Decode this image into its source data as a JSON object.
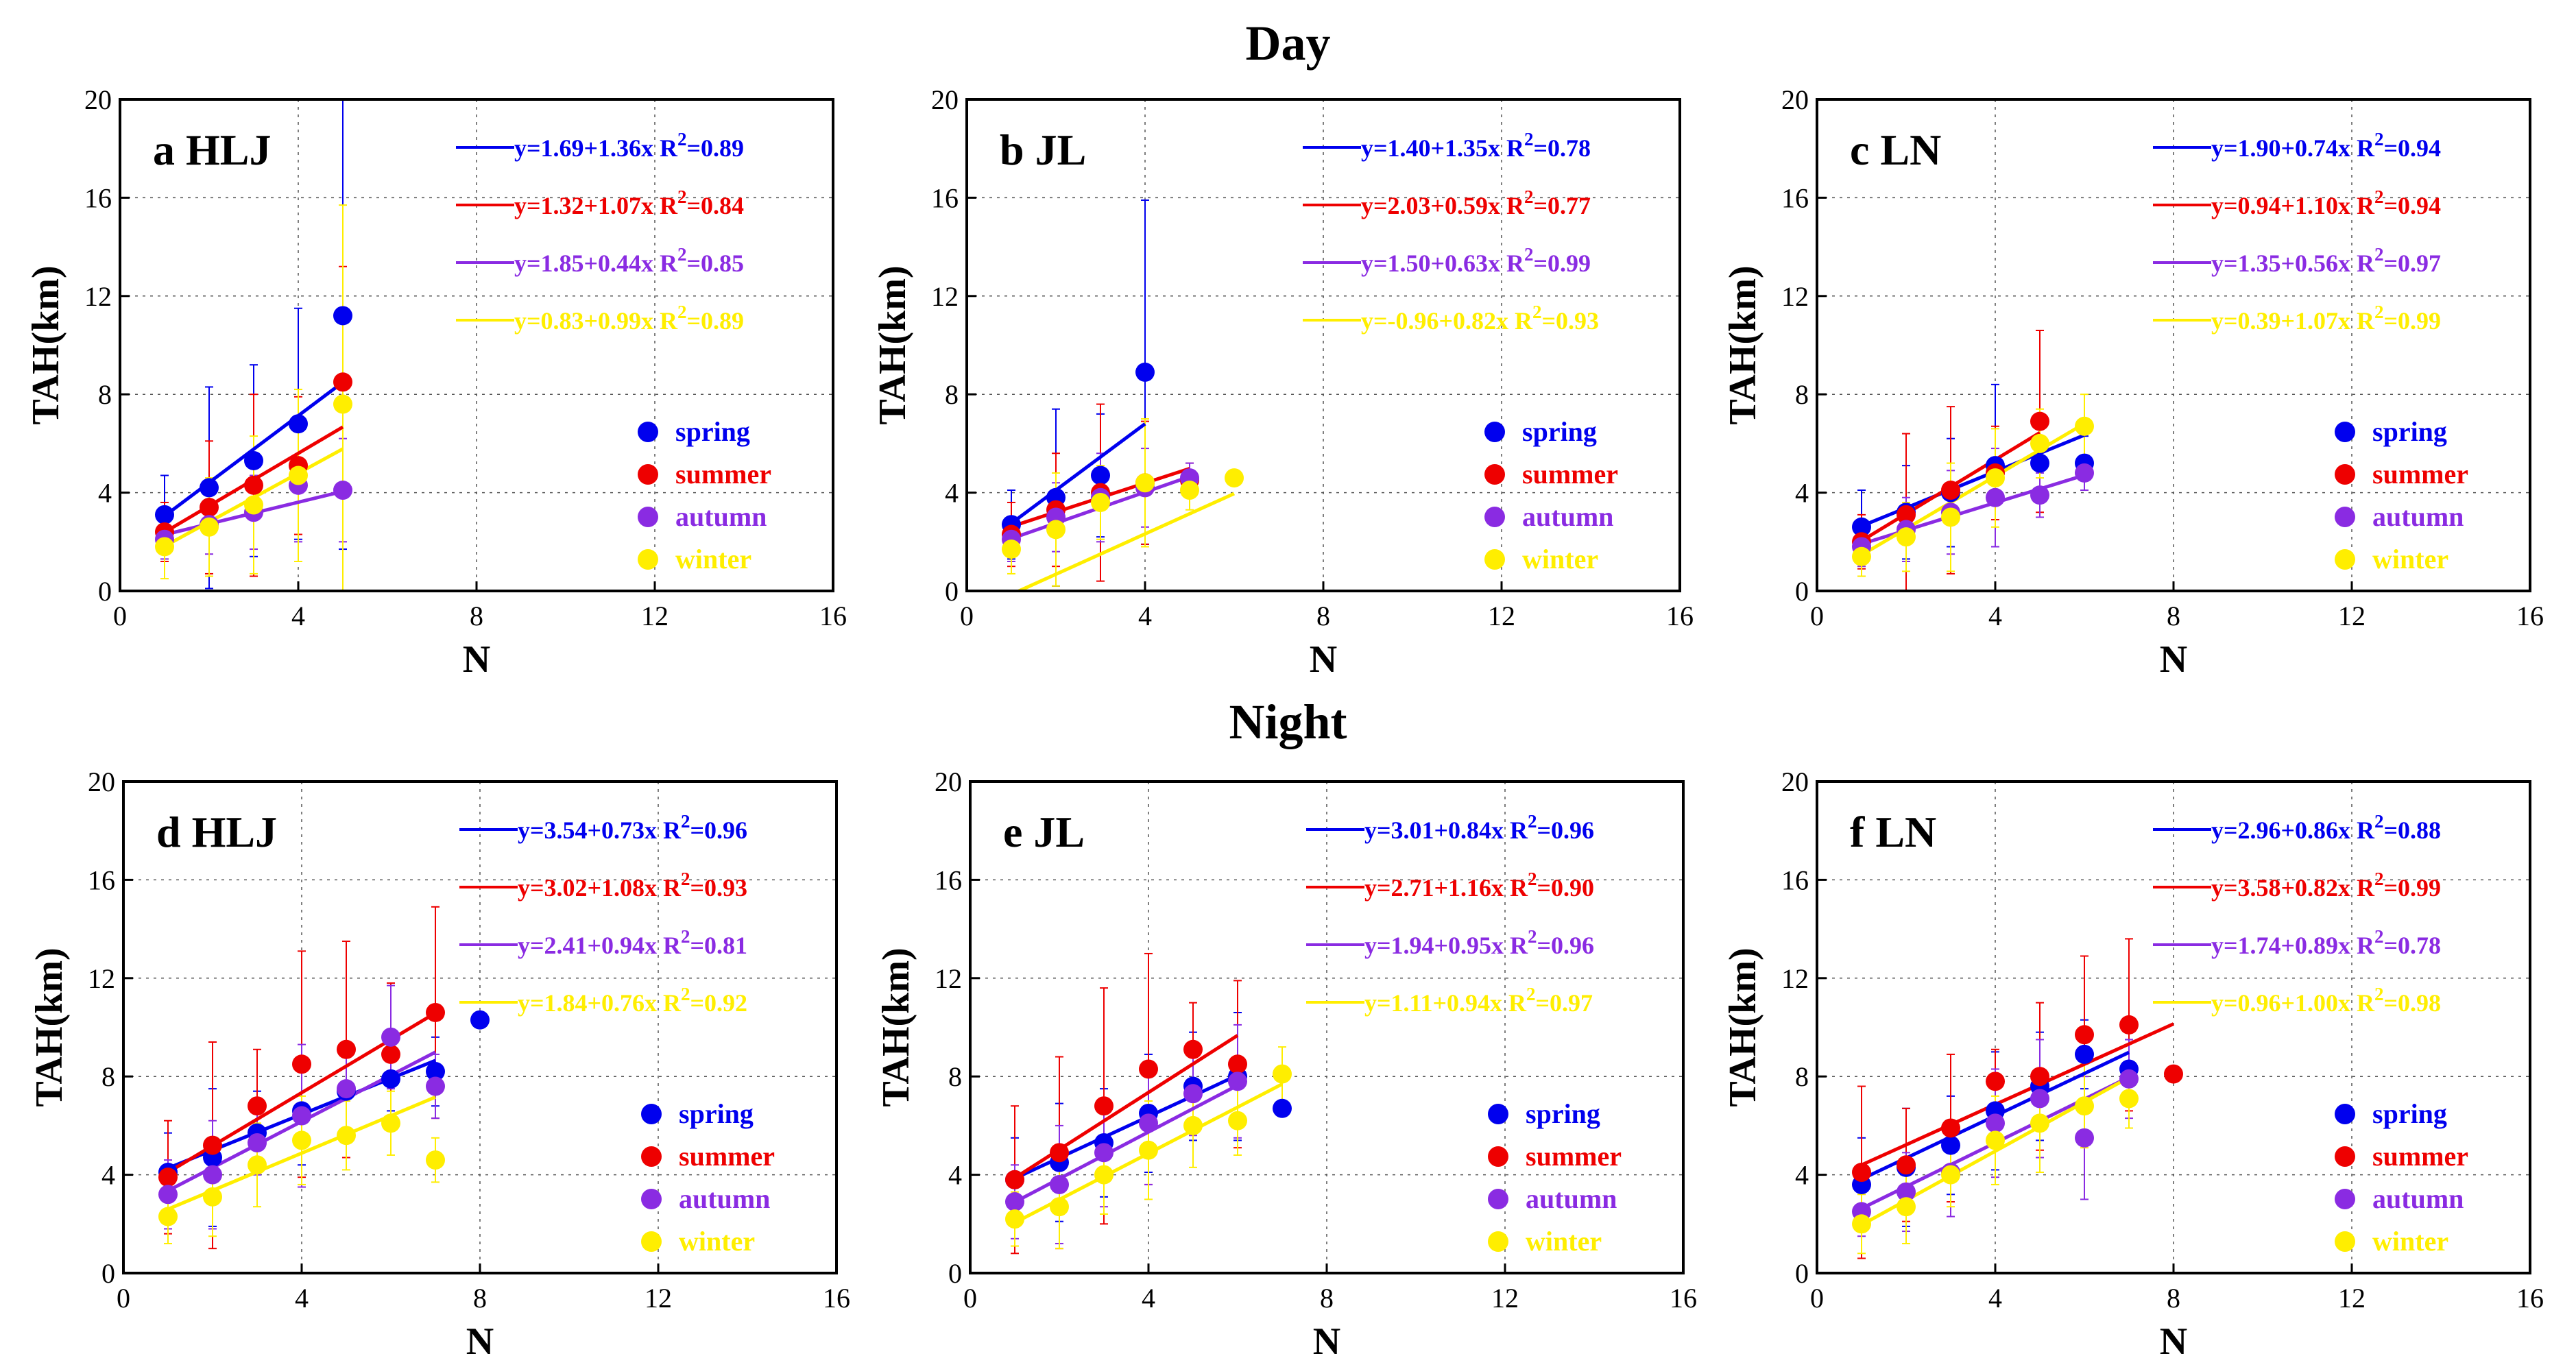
{
  "titles": {
    "day": "Day",
    "night": "Night"
  },
  "legend_names": [
    "spring",
    "summer",
    "autumn",
    "winter"
  ],
  "colors": {
    "spring": "#0000ee",
    "summer": "#ee0000",
    "autumn": "#8a2be2",
    "winter": "#ffee00"
  },
  "chart_data": [
    {
      "type": "scatter",
      "panel": "a HLJ",
      "group": "Day",
      "xlabel": "N",
      "ylabel": "TAH(km)",
      "xlim": [
        0,
        16
      ],
      "ylim": [
        0,
        20
      ],
      "xticks": [
        "0",
        "4",
        "8",
        "12",
        "16"
      ],
      "yticks": [
        "0",
        "4",
        "8",
        "12",
        "16",
        "20"
      ],
      "series": [
        {
          "name": "spring",
          "x": [
            1,
            2,
            3,
            4,
            5
          ],
          "y": [
            3.1,
            4.2,
            5.3,
            6.8,
            11.2
          ],
          "err": [
            1.6,
            4.1,
            3.9,
            4.7,
            9.5
          ],
          "fit": {
            "a": 1.69,
            "b": 1.36,
            "x0": 1,
            "x1": 5
          },
          "label": "y=1.69+1.36x",
          "r2": "=0.89"
        },
        {
          "name": "summer",
          "x": [
            1,
            2,
            3,
            4,
            5
          ],
          "y": [
            2.4,
            3.4,
            4.3,
            5.1,
            8.5
          ],
          "err": [
            1.2,
            2.7,
            3.7,
            2.8,
            4.7
          ],
          "fit": {
            "a": 1.32,
            "b": 1.07,
            "x0": 1,
            "x1": 5
          },
          "label": "y=1.32+1.07x",
          "r2": "=0.84"
        },
        {
          "name": "autumn",
          "x": [
            1,
            2,
            3,
            4,
            5
          ],
          "y": [
            2.1,
            2.7,
            3.2,
            4.3,
            4.1
          ],
          "err": [
            0.8,
            1.2,
            1.5,
            2.3,
            2.1
          ],
          "fit": {
            "a": 1.85,
            "b": 0.44,
            "x0": 1,
            "x1": 5
          },
          "label": "y=1.85+0.44x",
          "r2": "=0.85"
        },
        {
          "name": "winter",
          "x": [
            1,
            2,
            3,
            4,
            5
          ],
          "y": [
            1.8,
            2.6,
            3.5,
            4.7,
            7.6
          ],
          "err": [
            1.3,
            2.0,
            2.8,
            3.5,
            8.1
          ],
          "fit": {
            "a": 0.83,
            "b": 0.99,
            "x0": 1,
            "x1": 5
          },
          "label": "y=0.83+0.99x",
          "r2": "=0.89"
        }
      ]
    },
    {
      "type": "scatter",
      "panel": "b JL",
      "group": "Day",
      "xlabel": "N",
      "ylabel": "TAH(km)",
      "xlim": [
        0,
        16
      ],
      "ylim": [
        0,
        20
      ],
      "xticks": [
        "0",
        "4",
        "8",
        "12",
        "16"
      ],
      "yticks": [
        "0",
        "4",
        "8",
        "12",
        "16",
        "20"
      ],
      "series": [
        {
          "name": "spring",
          "x": [
            1,
            2,
            3,
            4
          ],
          "y": [
            2.7,
            3.8,
            4.7,
            8.9
          ],
          "err": [
            1.4,
            3.6,
            2.5,
            7.0
          ],
          "fit": {
            "a": 1.4,
            "b": 1.35,
            "x0": 1,
            "x1": 4
          },
          "label": "y=1.40+1.35x",
          "r2": "=0.78"
        },
        {
          "name": "summer",
          "x": [
            1,
            2,
            3,
            4,
            5
          ],
          "y": [
            2.3,
            3.3,
            4.0,
            4.4,
            4.5
          ],
          "err": [
            1.3,
            2.3,
            3.6,
            2.5,
            0.7
          ],
          "fit": {
            "a": 2.03,
            "b": 0.59,
            "x0": 1,
            "x1": 5
          },
          "label": "y=2.03+0.59x",
          "r2": "=0.77"
        },
        {
          "name": "autumn",
          "x": [
            1,
            2,
            3,
            4,
            5
          ],
          "y": [
            2.1,
            3.0,
            3.8,
            4.2,
            4.6
          ],
          "err": [
            0.9,
            1.4,
            1.8,
            1.6,
            0.6
          ],
          "fit": {
            "a": 1.5,
            "b": 0.63,
            "x0": 1,
            "x1": 5
          },
          "label": "y=1.50+0.63x",
          "r2": "=0.99"
        },
        {
          "name": "winter",
          "x": [
            1,
            2,
            3,
            4,
            5,
            6
          ],
          "y": [
            1.7,
            2.5,
            3.6,
            4.4,
            4.1,
            4.6
          ],
          "err": [
            1.0,
            2.3,
            1.5,
            2.6,
            0.8,
            0.3
          ],
          "fit": {
            "a": -0.96,
            "b": 0.82,
            "x0": 1,
            "x1": 6
          },
          "label": "y=-0.96+0.82x",
          "r2": "=0.93"
        }
      ]
    },
    {
      "type": "scatter",
      "panel": "c LN",
      "group": "Day",
      "xlabel": "N",
      "ylabel": "TAH(km)",
      "xlim": [
        0,
        16
      ],
      "ylim": [
        0,
        20
      ],
      "xticks": [
        "0",
        "4",
        "8",
        "12",
        "16"
      ],
      "yticks": [
        "0",
        "4",
        "8",
        "12",
        "16",
        "20"
      ],
      "series": [
        {
          "name": "spring",
          "x": [
            1,
            2,
            3,
            4,
            5,
            6
          ],
          "y": [
            2.6,
            3.2,
            4.0,
            5.1,
            5.2,
            5.2
          ],
          "err": [
            1.5,
            1.9,
            2.2,
            3.3,
            1.4,
            1.1
          ],
          "fit": {
            "a": 1.9,
            "b": 0.74,
            "x0": 1,
            "x1": 6
          },
          "label": "y=1.90+0.74x",
          "r2": "=0.94"
        },
        {
          "name": "summer",
          "x": [
            1,
            2,
            3,
            4,
            5
          ],
          "y": [
            2.0,
            3.1,
            4.1,
            4.8,
            6.9
          ],
          "err": [
            1.1,
            3.3,
            3.4,
            1.9,
            3.7
          ],
          "fit": {
            "a": 0.94,
            "b": 1.1,
            "x0": 1,
            "x1": 5
          },
          "label": "y=0.94+1.10x",
          "r2": "=0.94"
        },
        {
          "name": "autumn",
          "x": [
            1,
            2,
            3,
            4,
            5,
            6
          ],
          "y": [
            1.8,
            2.5,
            3.2,
            3.8,
            3.9,
            4.8
          ],
          "err": [
            0.8,
            1.3,
            1.7,
            2.0,
            0.9,
            0.7
          ],
          "fit": {
            "a": 1.35,
            "b": 0.56,
            "x0": 1,
            "x1": 6
          },
          "label": "y=1.35+0.56x",
          "r2": "=0.97"
        },
        {
          "name": "winter",
          "x": [
            1,
            2,
            3,
            4,
            5,
            6
          ],
          "y": [
            1.4,
            2.2,
            3.0,
            4.6,
            6.0,
            6.7
          ],
          "err": [
            0.8,
            1.4,
            2.2,
            2.0,
            1.4,
            1.3
          ],
          "fit": {
            "a": 0.39,
            "b": 1.07,
            "x0": 1,
            "x1": 6
          },
          "label": "y=0.39+1.07x",
          "r2": "=0.99"
        }
      ]
    },
    {
      "type": "scatter",
      "panel": "d HLJ",
      "group": "Night",
      "xlabel": "N",
      "ylabel": "TAH(km)",
      "xlim": [
        0,
        16
      ],
      "ylim": [
        0,
        20
      ],
      "xticks": [
        "0",
        "4",
        "8",
        "12",
        "16"
      ],
      "yticks": [
        "0",
        "4",
        "8",
        "12",
        "16",
        "20"
      ],
      "series": [
        {
          "name": "spring",
          "x": [
            1,
            2,
            3,
            4,
            5,
            6,
            7,
            8
          ],
          "y": [
            4.1,
            4.7,
            5.7,
            6.6,
            7.4,
            7.9,
            8.2,
            10.3
          ],
          "err": [
            1.6,
            2.8,
            1.7,
            2.2,
            1.5,
            1.3,
            1.4,
            0
          ],
          "fit": {
            "a": 3.54,
            "b": 0.73,
            "x0": 1,
            "x1": 7
          },
          "label": "y=3.54+0.73x",
          "r2": "=0.96"
        },
        {
          "name": "summer",
          "x": [
            1,
            2,
            3,
            4,
            5,
            6,
            7
          ],
          "y": [
            3.9,
            5.2,
            6.8,
            8.5,
            9.1,
            8.9,
            10.6
          ],
          "err": [
            2.3,
            4.2,
            2.3,
            4.6,
            4.4,
            2.9,
            4.3
          ],
          "fit": {
            "a": 3.02,
            "b": 1.08,
            "x0": 1,
            "x1": 7
          },
          "label": "y=3.02+1.08x",
          "r2": "=0.93"
        },
        {
          "name": "autumn",
          "x": [
            1,
            2,
            3,
            4,
            5,
            6,
            7
          ],
          "y": [
            3.2,
            4.0,
            5.3,
            6.4,
            7.5,
            9.6,
            7.6
          ],
          "err": [
            1.4,
            2.2,
            1.3,
            2.9,
            1.6,
            2.1,
            1.3
          ],
          "fit": {
            "a": 2.41,
            "b": 0.94,
            "x0": 1,
            "x1": 7
          },
          "label": "y=2.41+0.94x",
          "r2": "=0.81"
        },
        {
          "name": "winter",
          "x": [
            1,
            2,
            3,
            4,
            5,
            6,
            7
          ],
          "y": [
            2.3,
            3.1,
            4.4,
            5.4,
            5.6,
            6.1,
            4.6
          ],
          "err": [
            1.1,
            1.6,
            1.7,
            1.8,
            1.4,
            1.3,
            0.9
          ],
          "fit": {
            "a": 1.84,
            "b": 0.76,
            "x0": 1,
            "x1": 7
          },
          "label": "y=1.84+0.76x",
          "r2": "=0.92"
        }
      ]
    },
    {
      "type": "scatter",
      "panel": "e JL",
      "group": "Night",
      "xlabel": "N",
      "ylabel": "TAH(km)",
      "xlim": [
        0,
        16
      ],
      "ylim": [
        0,
        20
      ],
      "xticks": [
        "0",
        "4",
        "8",
        "12",
        "16"
      ],
      "yticks": [
        "0",
        "4",
        "8",
        "12",
        "16",
        "20"
      ],
      "series": [
        {
          "name": "spring",
          "x": [
            1,
            2,
            3,
            4,
            5,
            6,
            7
          ],
          "y": [
            3.8,
            4.5,
            5.3,
            6.5,
            7.6,
            8.0,
            6.7
          ],
          "err": [
            1.7,
            2.4,
            2.2,
            2.4,
            2.2,
            2.6,
            0
          ],
          "fit": {
            "a": 3.01,
            "b": 0.84,
            "x0": 1,
            "x1": 6
          },
          "label": "y=3.01+0.84x",
          "r2": "=0.96"
        },
        {
          "name": "summer",
          "x": [
            1,
            2,
            3,
            4,
            5,
            6
          ],
          "y": [
            3.8,
            4.9,
            6.8,
            8.3,
            9.1,
            8.5
          ],
          "err": [
            3.0,
            3.9,
            4.8,
            4.7,
            1.9,
            3.4
          ],
          "fit": {
            "a": 2.71,
            "b": 1.16,
            "x0": 1,
            "x1": 6
          },
          "label": "y=2.71+1.16x",
          "r2": "=0.90"
        },
        {
          "name": "autumn",
          "x": [
            1,
            2,
            3,
            4,
            5,
            6
          ],
          "y": [
            2.9,
            3.6,
            4.9,
            6.1,
            7.3,
            7.8
          ],
          "err": [
            1.5,
            2.4,
            2.2,
            2.5,
            1.7,
            2.3
          ],
          "fit": {
            "a": 1.94,
            "b": 0.95,
            "x0": 1,
            "x1": 6
          },
          "label": "y=1.94+0.95x",
          "r2": "=0.96"
        },
        {
          "name": "winter",
          "x": [
            1,
            2,
            3,
            4,
            5,
            6,
            7
          ],
          "y": [
            2.2,
            2.7,
            4.0,
            5.0,
            6.0,
            6.2,
            8.1
          ],
          "err": [
            1.1,
            1.7,
            1.6,
            2.0,
            1.7,
            1.4,
            1.1
          ],
          "fit": {
            "a": 1.11,
            "b": 0.94,
            "x0": 1,
            "x1": 7
          },
          "label": "y=1.11+0.94x",
          "r2": "=0.97"
        }
      ]
    },
    {
      "type": "scatter",
      "panel": "f LN",
      "group": "Night",
      "xlabel": "N",
      "ylabel": "TAH(km)",
      "xlim": [
        0,
        16
      ],
      "ylim": [
        0,
        20
      ],
      "xticks": [
        "0",
        "4",
        "8",
        "12",
        "16"
      ],
      "yticks": [
        "0",
        "4",
        "8",
        "12",
        "16",
        "20"
      ],
      "series": [
        {
          "name": "spring",
          "x": [
            1,
            2,
            3,
            4,
            5,
            6,
            7
          ],
          "y": [
            3.6,
            4.3,
            5.2,
            6.6,
            7.6,
            8.9,
            8.3
          ],
          "err": [
            1.9,
            2.4,
            2.0,
            2.4,
            2.2,
            1.4,
            1.2
          ],
          "fit": {
            "a": 2.96,
            "b": 0.86,
            "x0": 1,
            "x1": 7
          },
          "label": "y=2.96+0.86x",
          "r2": "=0.88"
        },
        {
          "name": "summer",
          "x": [
            1,
            2,
            3,
            4,
            5,
            6,
            7,
            8
          ],
          "y": [
            4.1,
            4.4,
            5.9,
            7.8,
            8.0,
            9.7,
            10.1,
            8.1
          ],
          "err": [
            3.5,
            2.3,
            3.0,
            1.3,
            3.0,
            3.2,
            3.5,
            0
          ],
          "fit": {
            "a": 3.58,
            "b": 0.82,
            "x0": 1,
            "x1": 8
          },
          "label": "y=3.58+0.82x",
          "r2": "=0.99"
        },
        {
          "name": "autumn",
          "x": [
            1,
            2,
            3,
            4,
            5,
            6,
            7
          ],
          "y": [
            2.5,
            3.3,
            4.1,
            6.1,
            7.1,
            5.5,
            7.9
          ],
          "err": [
            1.0,
            1.6,
            1.8,
            2.2,
            2.4,
            2.5,
            1.6
          ],
          "fit": {
            "a": 1.74,
            "b": 0.89,
            "x0": 1,
            "x1": 7
          },
          "label": "y=1.74+0.89x",
          "r2": "=0.78"
        },
        {
          "name": "winter",
          "x": [
            1,
            2,
            3,
            4,
            5,
            6,
            7
          ],
          "y": [
            2.0,
            2.7,
            4.0,
            5.4,
            6.1,
            6.8,
            7.1
          ],
          "err": [
            1.2,
            1.5,
            1.3,
            1.8,
            2.0,
            1.7,
            1.2
          ],
          "fit": {
            "a": 0.96,
            "b": 1.0,
            "x0": 1,
            "x1": 7
          },
          "label": "y=0.96+1.00x",
          "r2": "=0.98"
        }
      ]
    }
  ]
}
